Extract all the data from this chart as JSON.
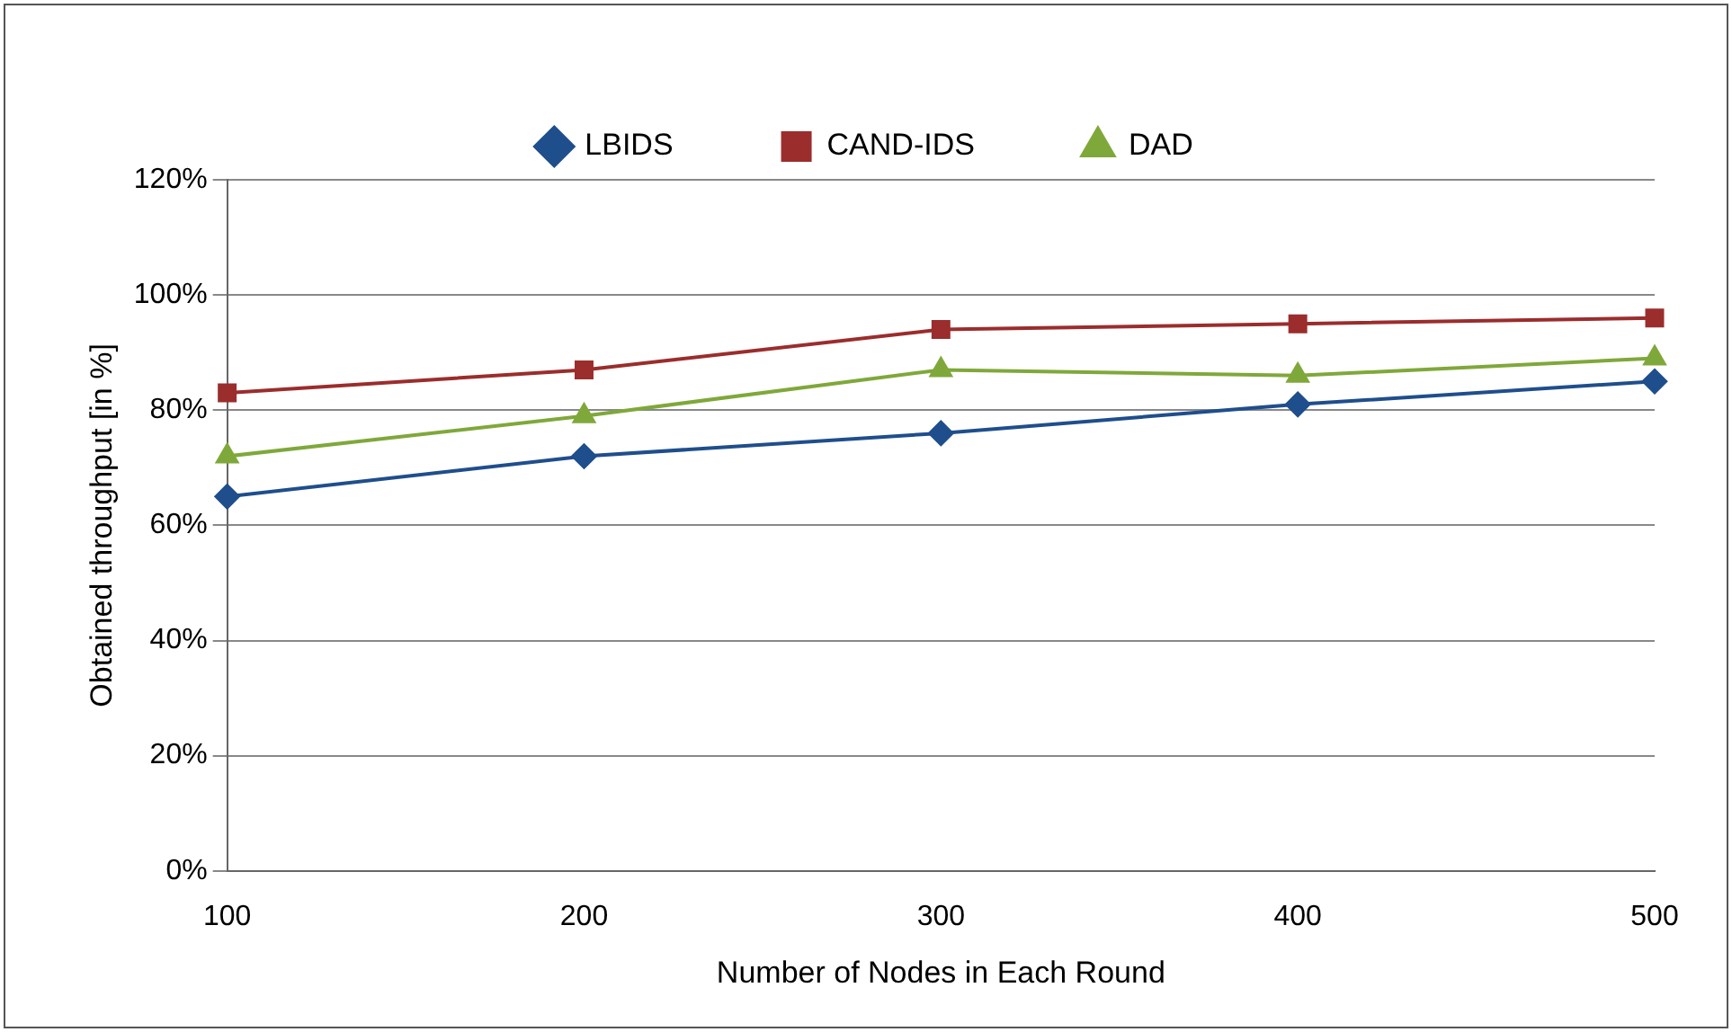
{
  "chart_data": {
    "type": "line",
    "xlabel": "Number of Nodes in Each Round",
    "ylabel": "Obtained throughput [in %]",
    "categories": [
      "100",
      "200",
      "300",
      "400",
      "500"
    ],
    "series": [
      {
        "name": "LBIDS",
        "color": "#1f4e8c",
        "marker": "diamond",
        "values": [
          65,
          72,
          76,
          81,
          85
        ]
      },
      {
        "name": "CAND-IDS",
        "color": "#9b2d2d",
        "marker": "square",
        "values": [
          83,
          87,
          94,
          95,
          96
        ]
      },
      {
        "name": "DAD",
        "color": "#7fa83a",
        "marker": "triangle",
        "values": [
          72,
          79,
          87,
          86,
          89
        ]
      }
    ],
    "ylim": [
      0,
      120
    ],
    "yticks": [
      {
        "value": 0,
        "label": "0%"
      },
      {
        "value": 20,
        "label": "20%"
      },
      {
        "value": 40,
        "label": "40%"
      },
      {
        "value": 60,
        "label": "60%"
      },
      {
        "value": 80,
        "label": "80%"
      },
      {
        "value": 100,
        "label": "100%"
      },
      {
        "value": 120,
        "label": "120%"
      }
    ],
    "grid": "y",
    "legend": "top",
    "line_style": "solid"
  }
}
